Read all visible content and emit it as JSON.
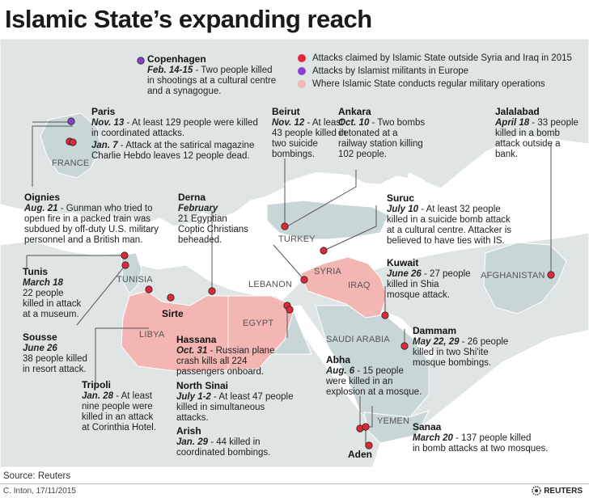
{
  "title": "Islamic State’s expanding reach",
  "legend": [
    {
      "label": "Attacks claimed by Islamic State outside Syria and Iraq in 2015",
      "color": "#e0283a"
    },
    {
      "label": "Attacks by Islamist militants in Europe",
      "color": "#8a3fd1"
    },
    {
      "label": "Where Islamic State conducts regular military operations",
      "color": "#f3b6b3"
    }
  ],
  "colors": {
    "land": "#dfe4e4",
    "land_highlight": "#c9d6d8",
    "water": "#ffffff",
    "is_zone": "#f3b6b3",
    "claimed_dot": "#e0283a",
    "europe_dot": "#8a3fd1",
    "leader": "#555555"
  },
  "countries": {
    "france": "FRANCE",
    "tunisia": "TUNISIA",
    "libya": "LIBYA",
    "egypt": "EGYPT",
    "lebanon": "LEBANON",
    "syria": "SYRIA",
    "iraq": "IRAQ",
    "turkey": "TURKEY",
    "saudi": "SAUDI ARABIA",
    "yemen": "YEMEN",
    "afghanistan": "AFGHANISTAN"
  },
  "events": {
    "copenhagen": {
      "city": "Copenhagen",
      "date": "Feb. 14-15",
      "text1": " - Two people killed",
      "text2": "in shootings at a cultural centre",
      "text3": "and a synagogue."
    },
    "paris": {
      "city": "Paris",
      "date1": "Nov. 13",
      "text1": " - At least 129 people were killed",
      "text2": "in coordinated attacks.",
      "date2": "Jan. 7",
      "text3": " - Attack at the satirical magazine",
      "text4": "Charlie Hebdo leaves 12 people dead."
    },
    "oignies": {
      "city": "Oignies",
      "date": "Aug. 21",
      "text1": " - Gunman who tried to",
      "text2": "open fire in a packed train was",
      "text3": "subdued by off-duty U.S. military",
      "text4": "personnel and a British man."
    },
    "derna": {
      "city": "Derna",
      "date": "February",
      "text1": "21 Egyptian",
      "text2": "Coptic Christians",
      "text3": "beheaded."
    },
    "beirut": {
      "city": "Beirut",
      "date": "Nov. 12",
      "text1": " - At least",
      "text2": "43 people killed in",
      "text3": "two suicide",
      "text4": "bombings."
    },
    "ankara": {
      "city": "Ankara",
      "date": "Oct. 10",
      "text1": " - Two bombs",
      "text2": "detonated at a",
      "text3": "railway station killing",
      "text4": "102 people."
    },
    "jalalabad": {
      "city": "Jalalabad",
      "date": "April 18",
      "text1": " - 33 people",
      "text2": "killed in a bomb",
      "text3": "attack outside a",
      "text4": "bank."
    },
    "suruc": {
      "city": "Suruc",
      "date": "July 10",
      "text1": " - At least 32 people",
      "text2": "killed in a suicide bomb attack",
      "text3": "at a cultural centre. Attacker is",
      "text4": "believed to have ties with IS."
    },
    "tunis": {
      "city": "Tunis",
      "date": "March 18",
      "text1": "22 people",
      "text2": "killed in attack",
      "text3": "at a museum."
    },
    "kuwait": {
      "city": "Kuwait",
      "date": "June 26",
      "text1": " - 27 people",
      "text2": "killed in Shia",
      "text3": "mosque attack."
    },
    "sirte": {
      "city": "Sirte"
    },
    "hassana": {
      "city": "Hassana",
      "date": "Oct. 31",
      "text1": " - Russian plane",
      "text2": "crash kills all 224",
      "text3": "passengers onboard."
    },
    "sousse": {
      "city": "Sousse",
      "date": "June 26",
      "text1": "38 people killed",
      "text2": "in resort attack."
    },
    "dammam": {
      "city": "Dammam",
      "date": "May 22, 29",
      "text1": " - 26 people",
      "text2": "killed in two Shi'ite",
      "text3": "mosque bombings."
    },
    "abha": {
      "city": "Abha",
      "date": "Aug. 6",
      "text1": " - 15 people",
      "text2": "were killed in an",
      "text3": "explosion at a mosque."
    },
    "tripoli": {
      "city": "Tripoli",
      "date": "Jan. 28",
      "text1": " - At least",
      "text2": "nine people were",
      "text3": "killed in an attack",
      "text4": "at Corinthia Hotel."
    },
    "northsinai": {
      "city": "North Sinai",
      "date": "July 1-2",
      "text1": " - At least 47 people",
      "text2": "killed in simultaneous",
      "text3": "attacks."
    },
    "arish": {
      "city": "Arish",
      "date": "Jan. 29",
      "text1": " - 44 killed in",
      "text2": "coordinated bombings."
    },
    "sanaa": {
      "city": "Sanaa",
      "date": "March 20",
      "text1": " - 137 people killed",
      "text2": "in bomb attacks at two mosques."
    },
    "aden": {
      "city": "Aden"
    }
  },
  "source": "Source: Reuters",
  "credit": "C. Inton, 17/11/2015",
  "logo": "REUTERS"
}
